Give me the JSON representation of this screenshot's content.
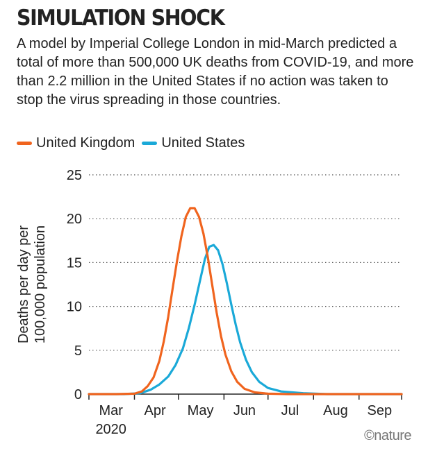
{
  "title": "SIMULATION SHOCK",
  "subtitle": "A model by Imperial College London in mid-March predicted a total of more than 500,000 UK deaths from COVID-19, and more than 2.2 million in the United States if no action was taken to stop the virus spreading in those countries.",
  "credit": "©nature",
  "chart_data": {
    "type": "line",
    "title": "",
    "xlabel": "",
    "ylabel": "Deaths per day per 100,000 population",
    "ylim": [
      0,
      25
    ],
    "yticks": [
      0,
      5,
      10,
      15,
      20,
      25
    ],
    "xlim": [
      "2020-03-01",
      "2020-09-30"
    ],
    "xticks": [
      {
        "label": "Mar",
        "sublabel": "2020",
        "date": "2020-03-16"
      },
      {
        "label": "Apr",
        "sublabel": "",
        "date": "2020-04-15"
      },
      {
        "label": "May",
        "sublabel": "",
        "date": "2020-05-16"
      },
      {
        "label": "Jun",
        "sublabel": "",
        "date": "2020-06-15"
      },
      {
        "label": "Jul",
        "sublabel": "",
        "date": "2020-07-16"
      },
      {
        "label": "Aug",
        "sublabel": "",
        "date": "2020-08-16"
      },
      {
        "label": "Sep",
        "sublabel": "",
        "date": "2020-09-15"
      }
    ],
    "grid": true,
    "legend": "top-left",
    "series": [
      {
        "name": "United Kingdom",
        "color": "#f0641e",
        "points": [
          [
            "2020-03-01",
            0
          ],
          [
            "2020-03-20",
            0
          ],
          [
            "2020-04-01",
            0.05
          ],
          [
            "2020-04-06",
            0.3
          ],
          [
            "2020-04-10",
            0.9
          ],
          [
            "2020-04-14",
            1.9
          ],
          [
            "2020-04-18",
            3.8
          ],
          [
            "2020-04-21",
            6.0
          ],
          [
            "2020-04-24",
            8.8
          ],
          [
            "2020-04-27",
            12.0
          ],
          [
            "2020-04-30",
            15.2
          ],
          [
            "2020-05-03",
            18.0
          ],
          [
            "2020-05-06",
            20.2
          ],
          [
            "2020-05-09",
            21.2
          ],
          [
            "2020-05-12",
            21.2
          ],
          [
            "2020-05-15",
            20.2
          ],
          [
            "2020-05-18",
            18.3
          ],
          [
            "2020-05-21",
            15.6
          ],
          [
            "2020-05-24",
            12.4
          ],
          [
            "2020-05-27",
            9.3
          ],
          [
            "2020-05-30",
            6.6
          ],
          [
            "2020-06-02",
            4.5
          ],
          [
            "2020-06-06",
            2.6
          ],
          [
            "2020-06-10",
            1.4
          ],
          [
            "2020-06-15",
            0.6
          ],
          [
            "2020-06-22",
            0.2
          ],
          [
            "2020-07-01",
            0.05
          ],
          [
            "2020-07-15",
            0
          ],
          [
            "2020-09-30",
            0
          ]
        ]
      },
      {
        "name": "United States",
        "color": "#1aa9d8",
        "points": [
          [
            "2020-03-01",
            0
          ],
          [
            "2020-03-25",
            0
          ],
          [
            "2020-04-05",
            0.1
          ],
          [
            "2020-04-12",
            0.5
          ],
          [
            "2020-04-18",
            1.1
          ],
          [
            "2020-04-24",
            2.0
          ],
          [
            "2020-04-29",
            3.3
          ],
          [
            "2020-05-04",
            5.2
          ],
          [
            "2020-05-08",
            7.5
          ],
          [
            "2020-05-12",
            10.2
          ],
          [
            "2020-05-16",
            13.2
          ],
          [
            "2020-05-19",
            15.4
          ],
          [
            "2020-05-22",
            16.8
          ],
          [
            "2020-05-25",
            17.0
          ],
          [
            "2020-05-28",
            16.4
          ],
          [
            "2020-05-31",
            14.8
          ],
          [
            "2020-06-03",
            12.6
          ],
          [
            "2020-06-06",
            10.2
          ],
          [
            "2020-06-09",
            7.9
          ],
          [
            "2020-06-12",
            5.9
          ],
          [
            "2020-06-16",
            3.9
          ],
          [
            "2020-06-20",
            2.5
          ],
          [
            "2020-06-25",
            1.4
          ],
          [
            "2020-07-01",
            0.7
          ],
          [
            "2020-07-10",
            0.3
          ],
          [
            "2020-07-25",
            0.1
          ],
          [
            "2020-08-10",
            0
          ],
          [
            "2020-09-30",
            0
          ]
        ]
      }
    ]
  }
}
